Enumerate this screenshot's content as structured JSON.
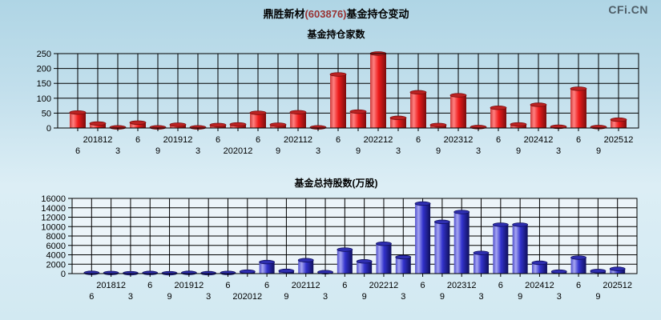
{
  "page": {
    "title": {
      "name": "鼎胜新材",
      "code": "(603876)",
      "suffix": "基金持仓变动"
    },
    "code_color": "#993333",
    "title_color": "#000000",
    "watermark": "CFi.CN",
    "watermark_color": "#4e5d66",
    "background_top_color": "#afd5e5",
    "background_bottom_color": "#d2e9f2"
  },
  "chart_data": [
    {
      "type": "bar",
      "title": "基金持仓家数",
      "xlabel": "",
      "ylabel": "",
      "categories": [
        "201806",
        "201812",
        "201903",
        "201906",
        "201909",
        "201912",
        "202003",
        "202006",
        "202012",
        "202106",
        "202109",
        "202112",
        "202203",
        "202206",
        "202209",
        "202212",
        "202303",
        "202306",
        "202309",
        "202312",
        "202403",
        "202406",
        "202409",
        "202412",
        "202503",
        "202506",
        "202509",
        "202512"
      ],
      "tick_labels": [
        "6",
        "201812",
        "3",
        "6",
        "9",
        "201912",
        "3",
        "6",
        "202012",
        "6",
        "9",
        "202112",
        "3",
        "6",
        "9",
        "202212",
        "3",
        "6",
        "9",
        "202312",
        "3",
        "6",
        "9",
        "202412",
        "3",
        "6",
        "9",
        "202512"
      ],
      "values": [
        52,
        15,
        2,
        18,
        2,
        11,
        2,
        10,
        12,
        51,
        11,
        53,
        2,
        180,
        55,
        250,
        34,
        120,
        10,
        110,
        3,
        68,
        12,
        78,
        4,
        132,
        3,
        28
      ],
      "ylim": [
        0,
        250
      ],
      "ytick_step": 50,
      "grid": true,
      "legend": null,
      "bar_colors": {
        "edge": "#cc3a3a",
        "light": "#ff8080",
        "main": "#ee1c1c",
        "dark": "#7a0d0d",
        "cap": "#bb2222"
      }
    },
    {
      "type": "bar",
      "title": "基金总持股数(万股)",
      "xlabel": "",
      "ylabel": "",
      "categories": [
        "201806",
        "201812",
        "201903",
        "201906",
        "201909",
        "201912",
        "202003",
        "202006",
        "202012",
        "202106",
        "202109",
        "202112",
        "202203",
        "202206",
        "202209",
        "202212",
        "202303",
        "202306",
        "202309",
        "202312",
        "202403",
        "202406",
        "202409",
        "202412",
        "202503",
        "202506",
        "202509",
        "202512"
      ],
      "tick_labels": [
        "6",
        "201812",
        "3",
        "6",
        "9",
        "201912",
        "3",
        "6",
        "202012",
        "6",
        "9",
        "202112",
        "3",
        "6",
        "9",
        "202212",
        "3",
        "6",
        "9",
        "202312",
        "3",
        "6",
        "9",
        "202412",
        "3",
        "6",
        "9",
        "202512"
      ],
      "values": [
        150,
        120,
        80,
        130,
        80,
        150,
        90,
        140,
        420,
        2450,
        580,
        2850,
        300,
        5100,
        2600,
        6350,
        3500,
        14900,
        11000,
        13100,
        4400,
        10400,
        10400,
        2300,
        420,
        3400,
        550,
        1000
      ],
      "ylim": [
        0,
        16000
      ],
      "ytick_step": 2000,
      "grid": true,
      "legend": null,
      "plot_bg": "#ecf4f9",
      "bar_colors": {
        "edge": "#5050cc",
        "light": "#a6a6f2",
        "main": "#3232cc",
        "dark": "#0f0f5c",
        "cap": "#2e2eb0"
      }
    }
  ]
}
